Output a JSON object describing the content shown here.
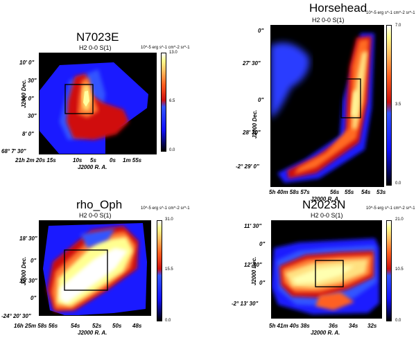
{
  "panels": [
    {
      "id": "n7023e",
      "title": "N7023E",
      "subtitle": "H2 0-0 S(1)",
      "unit": "10^-5 erg s^-1 cm^-2 sr^-1",
      "cbar_ticks": [
        "13.0",
        "6.5",
        "0.0"
      ],
      "ylabel": "J2000 Dec.",
      "xlabel": "J2000 R. A.",
      "yticks": [
        "10' 0\"",
        "30\"",
        "9' 0\"",
        "30\"",
        "8' 0\"",
        "68° 7' 30\""
      ],
      "xticks": [
        "21h 2m 20s 15s",
        "10s",
        "5s",
        "0s",
        "1m 55s"
      ]
    },
    {
      "id": "horsehead",
      "title": "Horsehead",
      "subtitle": "H2 0-0 S(1)",
      "unit": "10^-5 erg s^-1 cm^-2 sr^-1",
      "cbar_ticks": [
        "7.0",
        "3.5",
        "0.0"
      ],
      "ylabel": "J2000 Dec.",
      "xlabel": "J2000 R. A.",
      "yticks": [
        "0\"",
        "27' 30\"",
        "0\"",
        "28' 30\"",
        "0\"",
        "-2° 29' 0\""
      ],
      "xticks": [
        "5h 40m 58s 57s",
        "56s",
        "55s",
        "54s",
        "53s"
      ]
    },
    {
      "id": "rhooph",
      "title": "rho_Oph",
      "subtitle": "H2 0-0 S(1)",
      "unit": "10^-5 erg s^-1 cm^-2 sr^-1",
      "cbar_ticks": [
        "31.0",
        "15.5",
        "0.0"
      ],
      "ylabel": "J2000 Dec.",
      "xlabel": "J2000 R. A.",
      "yticks": [
        "18' 30\"",
        "0\"",
        "19' 30\"",
        "0\"",
        "-24° 20' 30\""
      ],
      "xticks": [
        "16h 25m 58s 56s",
        "54s",
        "52s",
        "50s",
        "48s"
      ]
    },
    {
      "id": "n2023n",
      "title": "N2023N",
      "subtitle": "H2 0-0 S(1)",
      "unit": "10^-5 erg s^-1 cm^-2 sr^-1",
      "cbar_ticks": [
        "21.0",
        "10.5",
        "0.0"
      ],
      "ylabel": "J2000 Dec.",
      "xlabel": "J2000 R. A.",
      "yticks": [
        "11' 30\"",
        "0\"",
        "12' 30\"",
        "0\"",
        "-2° 13' 30\""
      ],
      "xticks": [
        "5h 41m 40s 38s",
        "36s",
        "34s",
        "32s"
      ]
    }
  ],
  "colors": {
    "colormap": [
      "#000000",
      "#1a1aff",
      "#3355ff",
      "#d01010",
      "#ff5a1a",
      "#ffb060",
      "#ffff80",
      "#ffffff"
    ],
    "aperture_box": "#000000",
    "background": "#000000"
  }
}
